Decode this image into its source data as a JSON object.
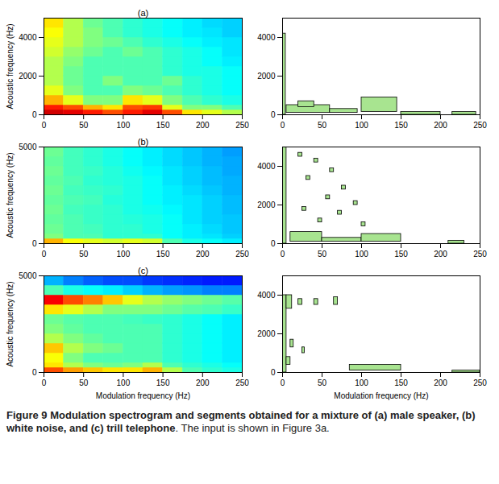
{
  "chart_data": [
    {
      "type": "heatmap",
      "title": "(a)",
      "ylabel": "Acoustic frequency (Hz)",
      "xlim": [
        0,
        250
      ],
      "ylim": [
        0,
        5000
      ],
      "xticks": [
        0,
        50,
        100,
        150,
        200,
        250
      ],
      "yticks": [
        0,
        2000,
        4000
      ],
      "xbins": [
        0,
        25,
        50,
        75,
        100,
        125,
        150,
        175,
        200,
        225,
        250
      ],
      "ybins": [
        0,
        250,
        500,
        1000,
        1500,
        2000,
        2500,
        3000,
        3500,
        4000,
        4500,
        5000
      ],
      "cells_range": [
        0,
        1
      ],
      "cells": [
        [
          0.92,
          0.9,
          0.85,
          0.8,
          0.85,
          0.9,
          0.8,
          0.65,
          0.6,
          0.55
        ],
        [
          0.85,
          0.8,
          0.7,
          0.65,
          0.8,
          0.82,
          0.6,
          0.5,
          0.5,
          0.45
        ],
        [
          0.7,
          0.6,
          0.5,
          0.5,
          0.65,
          0.6,
          0.5,
          0.45,
          0.42,
          0.4
        ],
        [
          0.6,
          0.5,
          0.45,
          0.45,
          0.5,
          0.48,
          0.45,
          0.42,
          0.4,
          0.38
        ],
        [
          0.55,
          0.48,
          0.45,
          0.5,
          0.45,
          0.45,
          0.48,
          0.42,
          0.4,
          0.38
        ],
        [
          0.55,
          0.48,
          0.45,
          0.45,
          0.45,
          0.45,
          0.42,
          0.4,
          0.4,
          0.38
        ],
        [
          0.55,
          0.5,
          0.45,
          0.45,
          0.45,
          0.45,
          0.42,
          0.4,
          0.38,
          0.36
        ],
        [
          0.58,
          0.52,
          0.48,
          0.45,
          0.48,
          0.45,
          0.42,
          0.4,
          0.38,
          0.35
        ],
        [
          0.6,
          0.55,
          0.5,
          0.48,
          0.45,
          0.42,
          0.4,
          0.38,
          0.36,
          0.35
        ],
        [
          0.62,
          0.55,
          0.5,
          0.45,
          0.42,
          0.4,
          0.38,
          0.36,
          0.35,
          0.33
        ],
        [
          0.65,
          0.55,
          0.48,
          0.45,
          0.42,
          0.4,
          0.38,
          0.36,
          0.34,
          0.33
        ]
      ]
    },
    {
      "type": "contour",
      "color": "#a8e490",
      "xlim": [
        0,
        250
      ],
      "ylim": [
        0,
        5000
      ],
      "xticks": [
        0,
        50,
        100,
        150,
        200,
        250
      ],
      "yticks": [
        0,
        2000,
        4000
      ],
      "segments": [
        [
          0,
          4,
          0,
          4200
        ],
        [
          5,
          60,
          100,
          500
        ],
        [
          60,
          95,
          100,
          300
        ],
        [
          100,
          145,
          150,
          900
        ],
        [
          20,
          40,
          400,
          700
        ],
        [
          150,
          200,
          0,
          150
        ],
        [
          215,
          245,
          0,
          150
        ]
      ]
    },
    {
      "type": "heatmap",
      "title": "(b)",
      "ylabel": "Acoustic frequency (Hz)",
      "xlim": [
        0,
        250
      ],
      "ylim": [
        0,
        5000
      ],
      "xticks": [
        0,
        50,
        100,
        150,
        200,
        250
      ],
      "yticks": [
        0,
        5000
      ],
      "xbins": [
        0,
        25,
        50,
        75,
        100,
        125,
        150,
        175,
        200,
        225,
        250
      ],
      "ybins": [
        0,
        250,
        500,
        1000,
        1500,
        2000,
        2500,
        3000,
        3500,
        4000,
        4500,
        5000
      ],
      "cells_range": [
        0,
        1
      ],
      "cells": [
        [
          0.7,
          0.62,
          0.6,
          0.58,
          0.6,
          0.58,
          0.45,
          0.4,
          0.38,
          0.36
        ],
        [
          0.5,
          0.45,
          0.45,
          0.42,
          0.42,
          0.42,
          0.38,
          0.36,
          0.35,
          0.33
        ],
        [
          0.48,
          0.45,
          0.44,
          0.42,
          0.42,
          0.4,
          0.38,
          0.36,
          0.34,
          0.32
        ],
        [
          0.47,
          0.45,
          0.43,
          0.42,
          0.41,
          0.4,
          0.38,
          0.35,
          0.33,
          0.32
        ],
        [
          0.48,
          0.44,
          0.43,
          0.42,
          0.4,
          0.39,
          0.37,
          0.35,
          0.33,
          0.31
        ],
        [
          0.47,
          0.45,
          0.44,
          0.41,
          0.4,
          0.38,
          0.36,
          0.35,
          0.33,
          0.31
        ],
        [
          0.48,
          0.44,
          0.43,
          0.42,
          0.4,
          0.38,
          0.36,
          0.34,
          0.32,
          0.3
        ],
        [
          0.47,
          0.45,
          0.42,
          0.41,
          0.4,
          0.38,
          0.35,
          0.33,
          0.31,
          0.3
        ],
        [
          0.48,
          0.44,
          0.43,
          0.41,
          0.39,
          0.37,
          0.35,
          0.33,
          0.31,
          0.29
        ],
        [
          0.47,
          0.44,
          0.42,
          0.4,
          0.38,
          0.36,
          0.34,
          0.32,
          0.3,
          0.29
        ],
        [
          0.48,
          0.44,
          0.42,
          0.4,
          0.38,
          0.36,
          0.34,
          0.32,
          0.3,
          0.28
        ]
      ]
    },
    {
      "type": "contour",
      "color": "#a8e490",
      "xlim": [
        0,
        250
      ],
      "ylim": [
        0,
        5000
      ],
      "xticks": [
        0,
        50,
        100,
        150,
        200,
        250
      ],
      "yticks": [
        0,
        2000,
        4000
      ],
      "segments": [
        [
          0,
          5,
          0,
          5000
        ],
        [
          20,
          25,
          4500,
          4700
        ],
        [
          40,
          45,
          4200,
          4400
        ],
        [
          60,
          65,
          3700,
          3900
        ],
        [
          30,
          35,
          3300,
          3500
        ],
        [
          75,
          80,
          2800,
          3000
        ],
        [
          55,
          60,
          2300,
          2500
        ],
        [
          90,
          95,
          2000,
          2200
        ],
        [
          25,
          30,
          1700,
          1900
        ],
        [
          70,
          75,
          1500,
          1700
        ],
        [
          45,
          50,
          1100,
          1300
        ],
        [
          100,
          105,
          900,
          1100
        ],
        [
          10,
          50,
          100,
          600
        ],
        [
          50,
          100,
          100,
          300
        ],
        [
          100,
          150,
          100,
          500
        ],
        [
          210,
          230,
          0,
          150
        ]
      ]
    },
    {
      "type": "heatmap",
      "title": "(c)",
      "ylabel": "Acoustic frequency (Hz)",
      "xlabel": "Modulation frequency (Hz)",
      "xlim": [
        0,
        250
      ],
      "ylim": [
        0,
        5000
      ],
      "xticks": [
        0,
        50,
        100,
        150,
        200,
        250
      ],
      "yticks": [
        0,
        5000
      ],
      "xbins": [
        0,
        25,
        50,
        75,
        100,
        125,
        150,
        175,
        200,
        225,
        250
      ],
      "ybins": [
        0,
        250,
        500,
        1000,
        1500,
        2000,
        2500,
        3000,
        3500,
        4000,
        4500,
        5000
      ],
      "cells_range": [
        0,
        1
      ],
      "cells": [
        [
          0.8,
          0.72,
          0.68,
          0.65,
          0.65,
          0.7,
          0.55,
          0.45,
          0.42,
          0.4
        ],
        [
          0.65,
          0.55,
          0.5,
          0.48,
          0.5,
          0.55,
          0.45,
          0.42,
          0.4,
          0.38
        ],
        [
          0.62,
          0.5,
          0.45,
          0.45,
          0.45,
          0.45,
          0.42,
          0.4,
          0.38,
          0.36
        ],
        [
          0.68,
          0.55,
          0.5,
          0.48,
          0.45,
          0.45,
          0.42,
          0.4,
          0.38,
          0.36
        ],
        [
          0.55,
          0.5,
          0.47,
          0.45,
          0.45,
          0.45,
          0.42,
          0.4,
          0.38,
          0.36
        ],
        [
          0.5,
          0.47,
          0.45,
          0.45,
          0.45,
          0.45,
          0.42,
          0.4,
          0.38,
          0.36
        ],
        [
          0.48,
          0.46,
          0.45,
          0.45,
          0.44,
          0.43,
          0.42,
          0.4,
          0.38,
          0.36
        ],
        [
          0.65,
          0.6,
          0.55,
          0.5,
          0.5,
          0.5,
          0.48,
          0.46,
          0.45,
          0.43
        ],
        [
          0.88,
          0.8,
          0.75,
          0.68,
          0.6,
          0.55,
          0.52,
          0.5,
          0.48,
          0.46
        ],
        [
          0.45,
          0.4,
          0.38,
          0.36,
          0.33,
          0.3,
          0.28,
          0.27,
          0.25,
          0.25
        ],
        [
          0.3,
          0.25,
          0.22,
          0.2,
          0.2,
          0.18,
          0.17,
          0.16,
          0.15,
          0.15
        ]
      ]
    },
    {
      "type": "contour",
      "color": "#a8e490",
      "xlabel": "Modulation frequency (Hz)",
      "xlim": [
        0,
        250
      ],
      "ylim": [
        0,
        5000
      ],
      "xticks": [
        0,
        50,
        100,
        150,
        200,
        250
      ],
      "yticks": [
        0,
        2000,
        4000
      ],
      "segments": [
        [
          0,
          5,
          0,
          4000
        ],
        [
          5,
          12,
          3300,
          4000
        ],
        [
          20,
          25,
          3500,
          3800
        ],
        [
          40,
          45,
          3500,
          3800
        ],
        [
          65,
          70,
          3500,
          3900
        ],
        [
          10,
          14,
          1300,
          1700
        ],
        [
          5,
          10,
          400,
          800
        ],
        [
          25,
          28,
          1000,
          1300
        ],
        [
          85,
          150,
          100,
          400
        ],
        [
          215,
          250,
          0,
          100
        ]
      ]
    }
  ],
  "caption": {
    "bold": "Figure 9 Modulation spectrogram and segments obtained for a mixture of (a) male speaker, (b) white noise, and (c) trill telephone",
    "text": ". The input is shown in Figure 3a."
  }
}
